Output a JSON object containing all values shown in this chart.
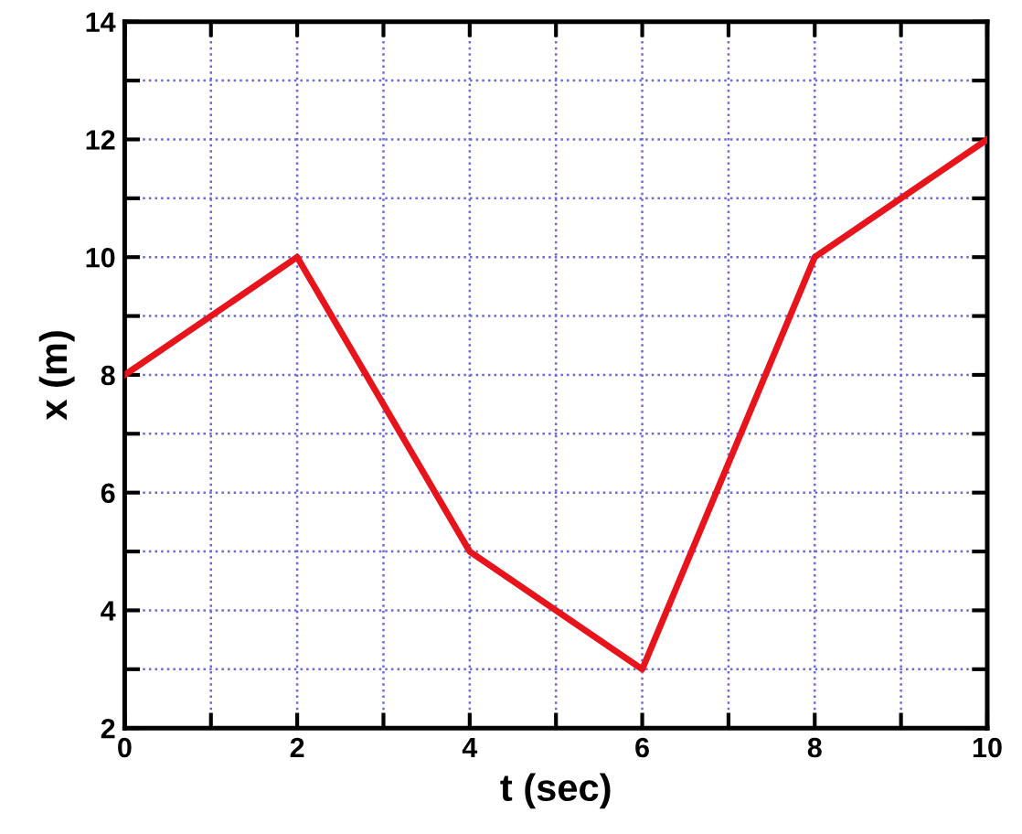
{
  "chart_data": {
    "type": "line",
    "xlabel": "t (sec)",
    "ylabel": "x (m)",
    "x": [
      0,
      2,
      4,
      6,
      8,
      10
    ],
    "series": [
      {
        "color": "#e8141c",
        "values": [
          8,
          10,
          5,
          3,
          10,
          12
        ]
      }
    ],
    "xlim": [
      0,
      10
    ],
    "ylim": [
      2,
      14
    ],
    "xticks": [
      0,
      {
        "value": 1,
        "label": null
      },
      2,
      {
        "value": 3,
        "label": null
      },
      4,
      {
        "value": 5,
        "label": null
      },
      6,
      {
        "value": 7,
        "label": null
      },
      8,
      {
        "value": 9,
        "label": null
      },
      10
    ],
    "yticks": [
      2,
      {
        "value": 3,
        "label": null
      },
      4,
      {
        "value": 5,
        "label": null
      },
      6,
      {
        "value": 7,
        "label": null
      },
      8,
      {
        "value": 9,
        "label": null
      },
      10,
      {
        "value": 11,
        "label": null
      },
      12,
      {
        "value": 13,
        "label": null
      },
      14
    ],
    "grid": true,
    "marker": "none",
    "line_style": "solid"
  }
}
